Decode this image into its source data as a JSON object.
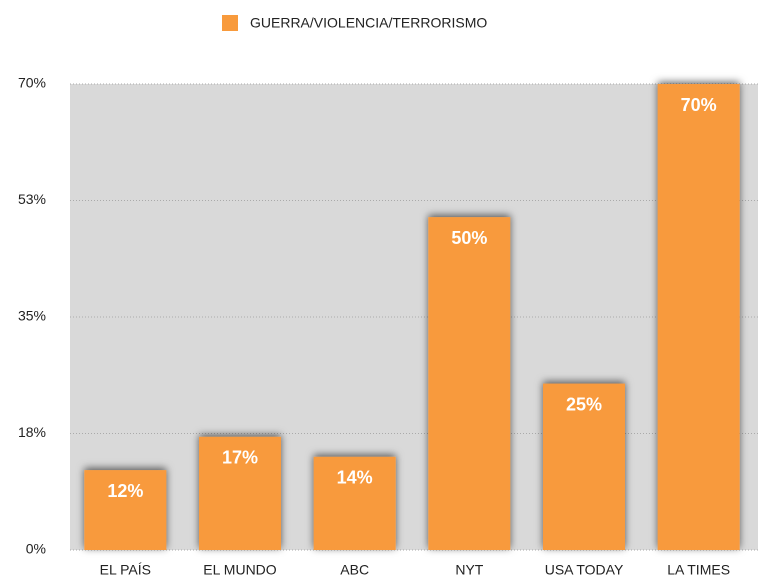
{
  "chart_data": {
    "type": "bar",
    "categories": [
      "EL PAÍS",
      "EL MUNDO",
      "ABC",
      "NYT",
      "USA TODAY",
      "LA TIMES"
    ],
    "series": [
      {
        "name": "GUERRA/VIOLENCIA/TERRORISMO",
        "color": "#f89a3c",
        "values": [
          12,
          17,
          14,
          50,
          25,
          70
        ],
        "value_labels": [
          "12%",
          "17%",
          "14%",
          "50%",
          "25%",
          "70%"
        ]
      }
    ],
    "ylim": [
      0,
      70
    ],
    "yticks": [
      {
        "value": 0,
        "label": "0%"
      },
      {
        "value": 17.5,
        "label": "18%"
      },
      {
        "value": 35,
        "label": "35%"
      },
      {
        "value": 52.5,
        "label": "53%"
      },
      {
        "value": 70,
        "label": "70%"
      }
    ],
    "grid": true,
    "legend": "top"
  }
}
